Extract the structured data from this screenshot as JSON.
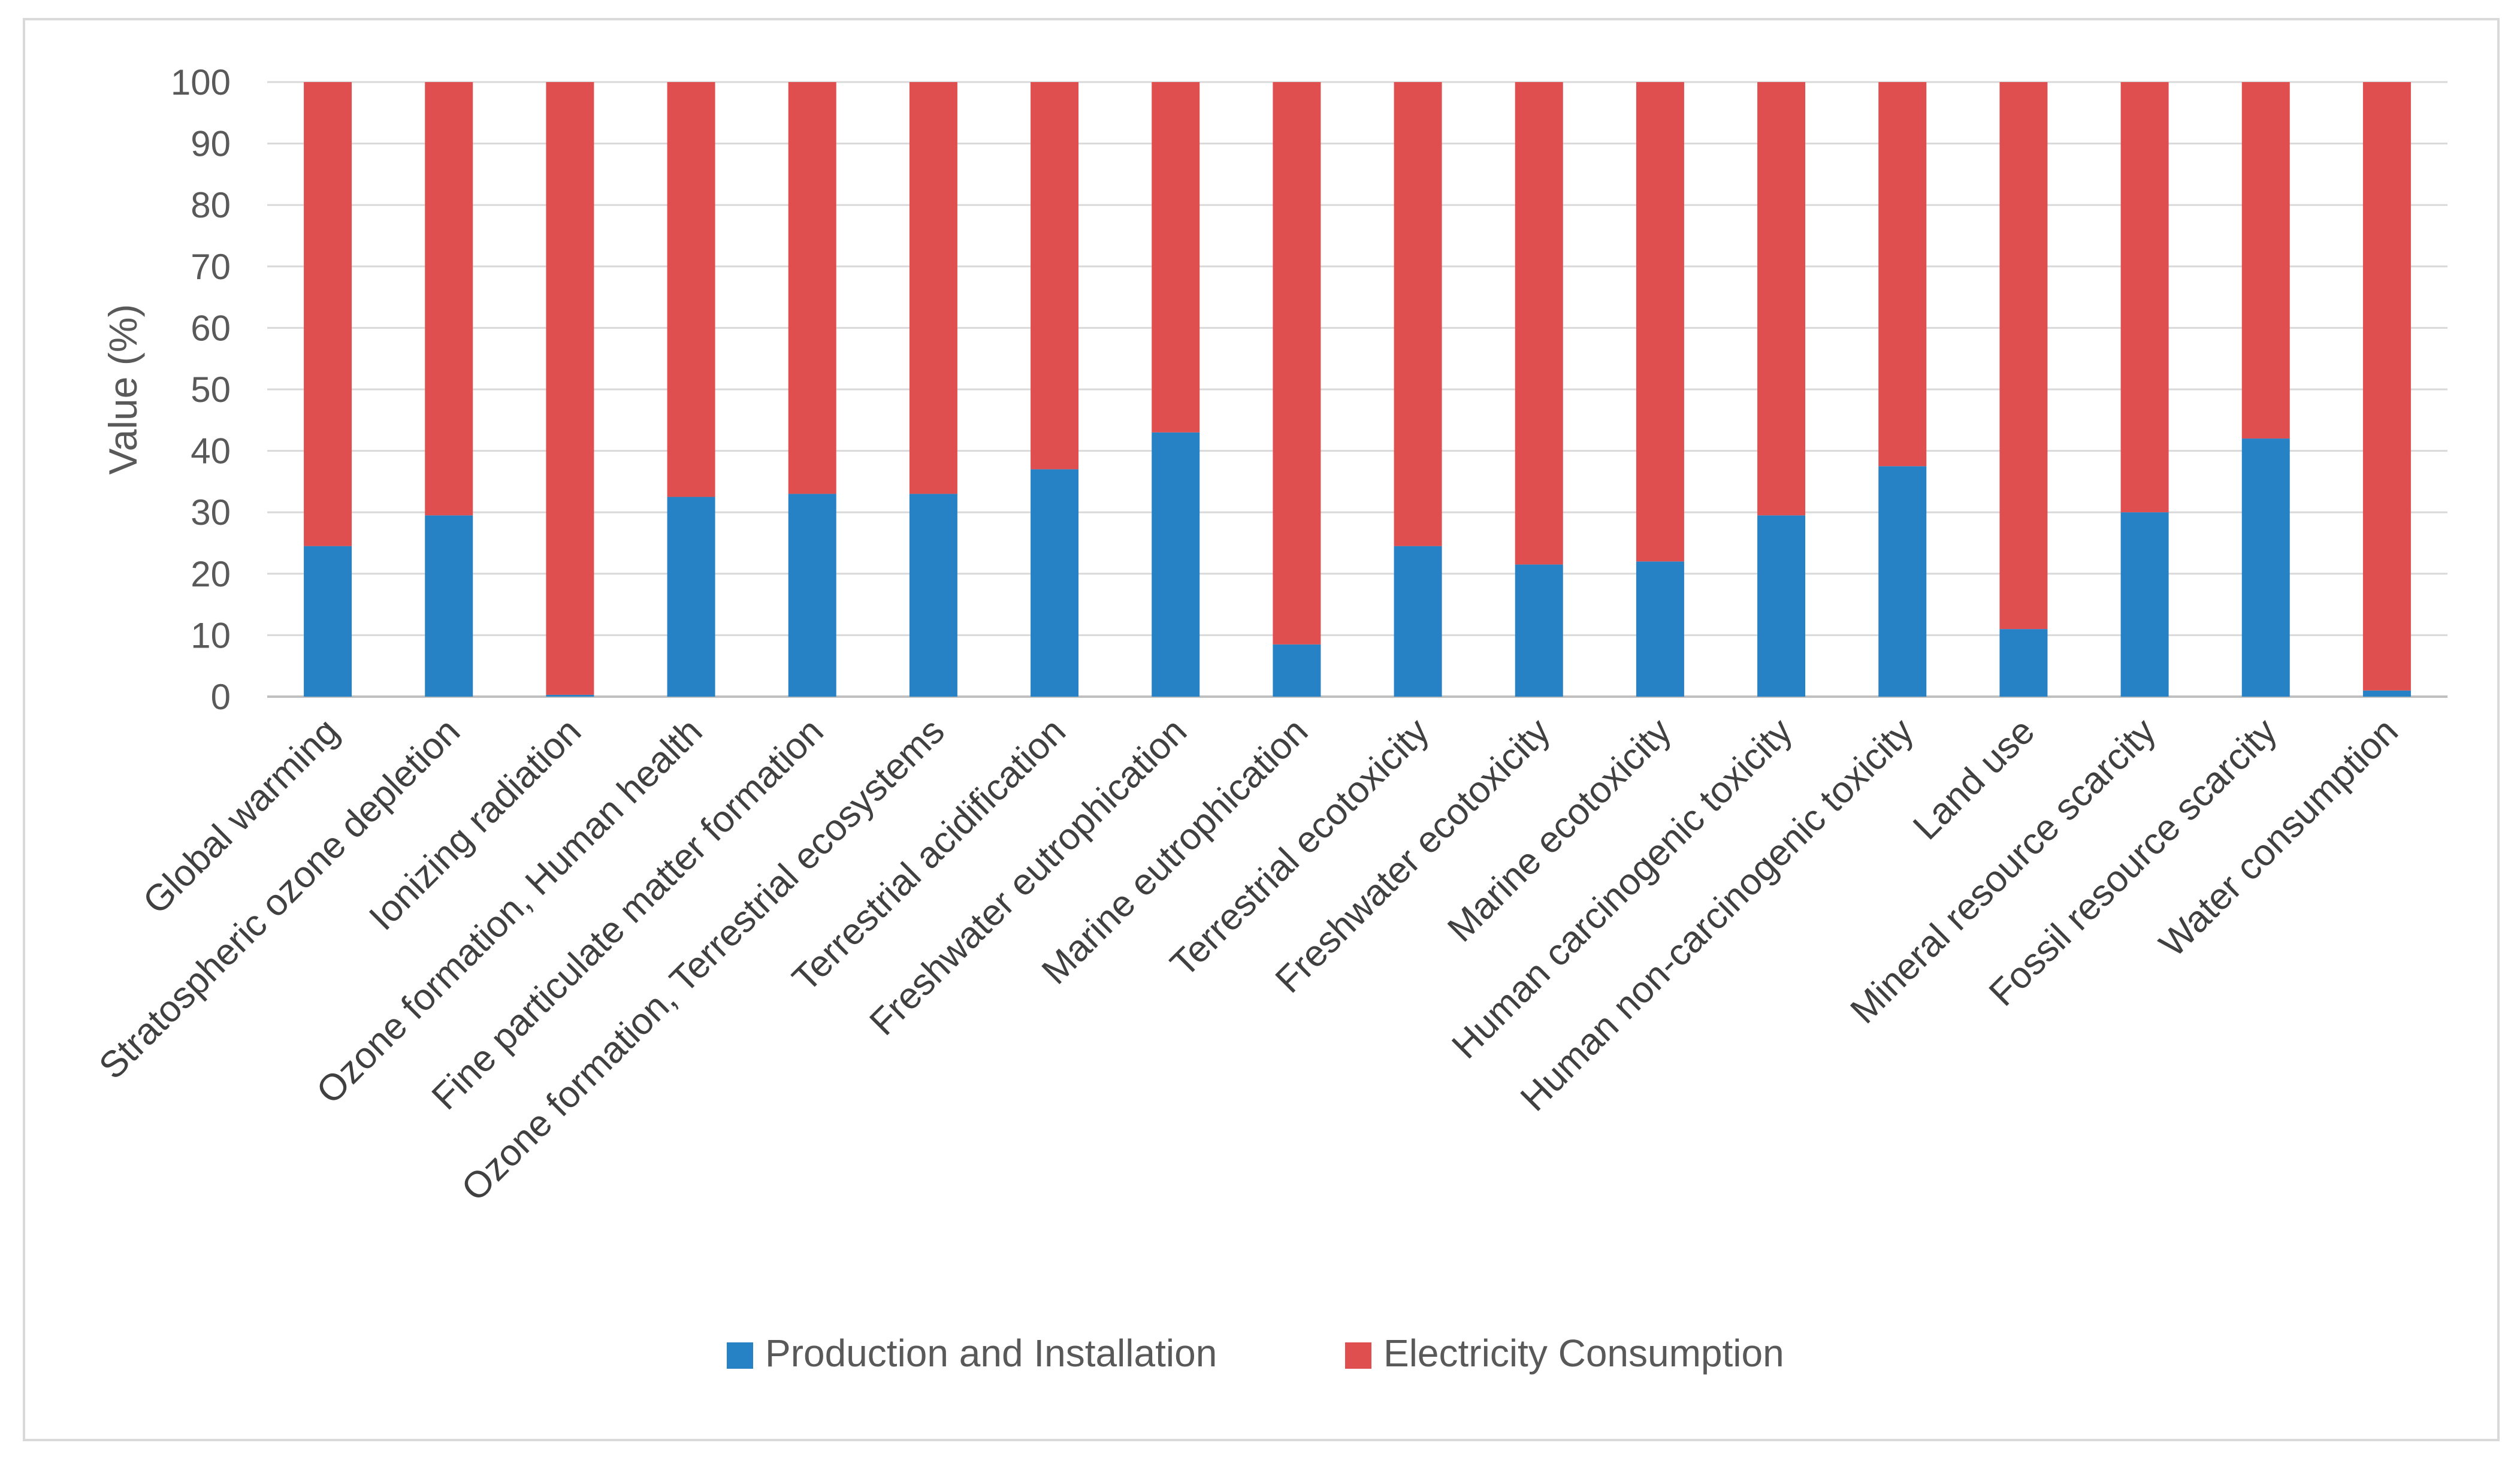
{
  "chart_data": {
    "type": "bar",
    "stacked": true,
    "title": "",
    "xlabel": "",
    "ylabel": "Value (%)",
    "ylim": [
      0,
      100
    ],
    "yticks": [
      0,
      10,
      20,
      30,
      40,
      50,
      60,
      70,
      80,
      90,
      100
    ],
    "grid": true,
    "legend_position": "bottom",
    "categories": [
      "Global warming",
      "Stratospheric ozone depletion",
      "Ionizing radiation",
      "Ozone formation, Human health",
      "Fine particulate matter formation",
      "Ozone formation, Terrestrial ecosystems",
      "Terrestrial acidification",
      "Freshwater eutrophication",
      "Marine eutrophication",
      "Terrestrial ecotoxicity",
      "Freshwater ecotoxicity",
      "Marine ecotoxicity",
      "Human carcinogenic toxicity",
      "Human non-carcinogenic toxicity",
      "Land use",
      "Mineral resource scarcity",
      "Fossil resource scarcity",
      "Water consumption"
    ],
    "series": [
      {
        "name": "Production and Installation",
        "color": "#2681c5",
        "values": [
          24.5,
          29.5,
          0.3,
          32.5,
          33,
          33,
          37,
          43,
          8.5,
          24.5,
          21.5,
          22,
          29.5,
          37.5,
          11,
          30,
          42,
          1
        ]
      },
      {
        "name": "Electricity Consumption",
        "color": "#e04f50",
        "values": [
          75.5,
          70.5,
          99.7,
          67.5,
          67,
          67,
          63,
          57,
          91.5,
          75.5,
          78.5,
          78,
          70.5,
          62.5,
          89,
          70,
          58,
          99
        ]
      }
    ]
  }
}
